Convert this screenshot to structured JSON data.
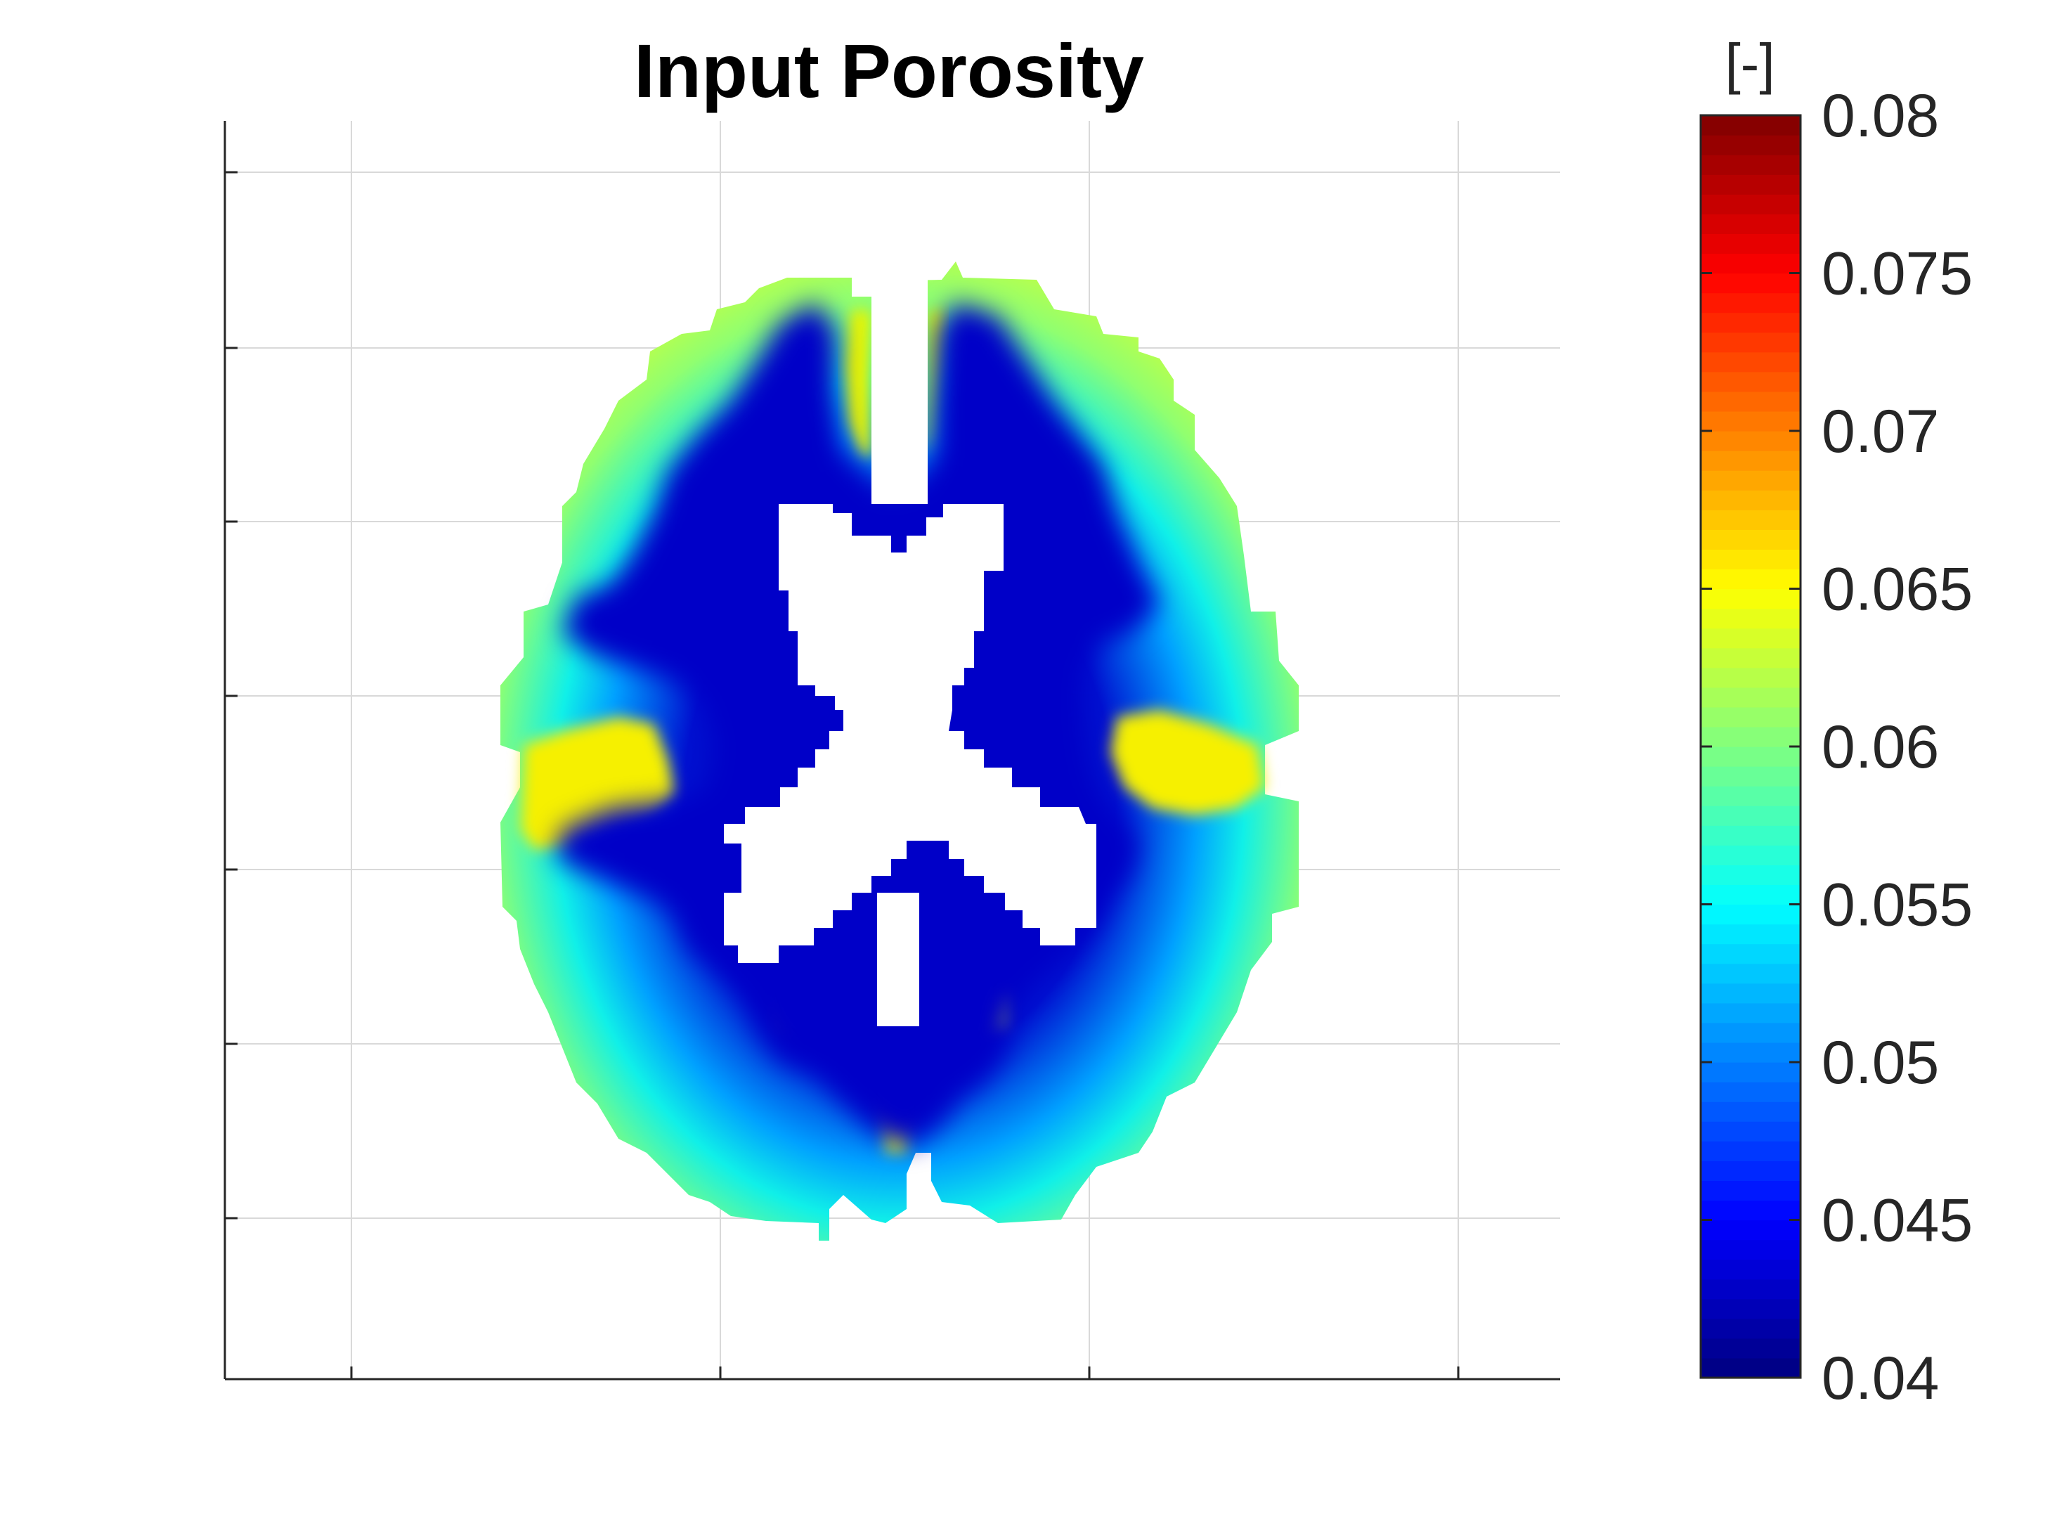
{
  "chart_data": {
    "type": "heatmap",
    "title": "Input Porosity",
    "xlabel": "",
    "ylabel": "",
    "x_tick_labels": [],
    "y_tick_labels": [],
    "grid": true,
    "colormap": "jet",
    "colorbar": {
      "label": "[-]",
      "range": [
        0.04,
        0.08
      ],
      "ticks": [
        0.04,
        0.045,
        0.05,
        0.055,
        0.06,
        0.065,
        0.07,
        0.075,
        0.08
      ],
      "tick_labels": [
        "0.04",
        "0.045",
        "0.05",
        "0.055",
        "0.06",
        "0.065",
        "0.07",
        "0.075",
        "0.08"
      ],
      "location": "right"
    },
    "field_description_values": {
      "ventricles": null,
      "white_matter": 0.042,
      "gray_matter_outer": 0.058,
      "gray_matter_peak": 0.065
    }
  }
}
